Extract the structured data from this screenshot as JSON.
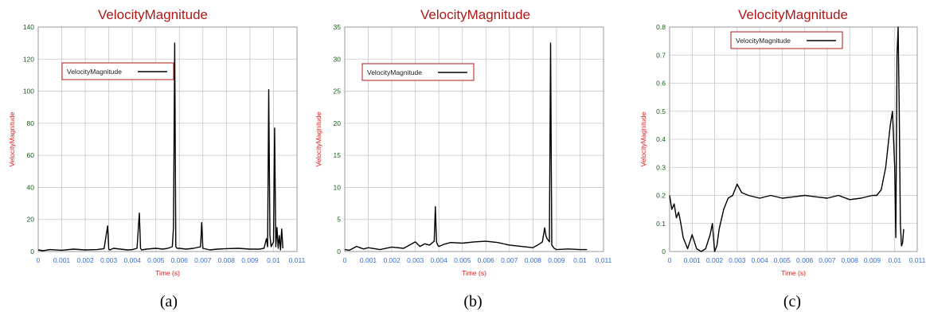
{
  "colors": {
    "title": "#b01818",
    "axis_label": "#e01818",
    "axis_tick_y": "#1a5a1a",
    "axis_tick_x": "#3a6ed0",
    "grid": "#c8c8c8",
    "line": "#000000",
    "legend_border": "#b01818"
  },
  "chart_data": [
    {
      "type": "line",
      "title": "VelocityMagnitude",
      "xlabel": "Time (s)",
      "ylabel": "VelocityMagnitude",
      "legend": "VelocityMagnitude",
      "legend_placement": "upper-left",
      "caption": "(a)",
      "xlim": [
        0,
        0.011
      ],
      "ylim": [
        0,
        140
      ],
      "xticks": [
        "0",
        "0.001",
        "0.002",
        "0.003",
        "0.004",
        "0.005",
        "0.006",
        "0.007",
        "0.008",
        "0.009",
        "0.01",
        "0.011"
      ],
      "yticks": [
        "0",
        "20",
        "40",
        "60",
        "80",
        "100",
        "120",
        "140"
      ],
      "grid": true,
      "series": [
        {
          "name": "VelocityMagnitude",
          "x": [
            0,
            0.0002,
            0.0005,
            0.001,
            0.0015,
            0.002,
            0.0025,
            0.0028,
            0.00295,
            0.003,
            0.00305,
            0.0032,
            0.0035,
            0.0038,
            0.004,
            0.0042,
            0.0043,
            0.00435,
            0.0044,
            0.0046,
            0.005,
            0.0053,
            0.0055,
            0.0057,
            0.00575,
            0.0058,
            0.00585,
            0.0059,
            0.006,
            0.0063,
            0.0066,
            0.0069,
            0.00695,
            0.007,
            0.0073,
            0.0076,
            0.008,
            0.0085,
            0.009,
            0.0094,
            0.0096,
            0.0097,
            0.00975,
            0.0098,
            0.00985,
            0.0099,
            0.01,
            0.01005,
            0.0101,
            0.01015,
            0.0102,
            0.01025,
            0.0103,
            0.01035,
            0.0104
          ],
          "y": [
            1,
            0.5,
            1.2,
            0.8,
            1.5,
            1,
            1.2,
            1.8,
            16,
            1.5,
            1,
            2,
            1.5,
            1,
            1.2,
            2,
            24,
            2,
            1,
            1.5,
            2,
            1.5,
            2,
            3,
            15,
            130,
            3,
            2,
            2,
            1.5,
            2,
            3,
            18,
            2,
            1,
            1.5,
            1.8,
            2,
            1.5,
            1.5,
            2,
            8,
            3,
            101,
            10,
            3,
            6,
            77,
            3,
            15,
            2,
            10,
            1,
            14,
            2
          ]
        }
      ]
    },
    {
      "type": "line",
      "title": "VelocityMagnitude",
      "xlabel": "Time (s)",
      "ylabel": "VelocityMagnitude",
      "legend": "VelocityMagnitude",
      "legend_placement": "upper-left",
      "caption": "(b)",
      "xlim": [
        0,
        0.011
      ],
      "ylim": [
        0,
        35
      ],
      "xticks": [
        "0",
        "0.001",
        "0.002",
        "0.003",
        "0.004",
        "0.005",
        "0.006",
        "0.007",
        "0.008",
        "0.009",
        "0.01",
        "0.011"
      ],
      "yticks": [
        "0",
        "5",
        "10",
        "15",
        "20",
        "25",
        "30",
        "35"
      ],
      "grid": true,
      "series": [
        {
          "name": "VelocityMagnitude",
          "x": [
            0,
            0.0002,
            0.0005,
            0.0008,
            0.001,
            0.0015,
            0.002,
            0.0025,
            0.003,
            0.0032,
            0.0034,
            0.0036,
            0.0038,
            0.00385,
            0.0039,
            0.00395,
            0.004,
            0.0042,
            0.0045,
            0.005,
            0.0055,
            0.006,
            0.0065,
            0.007,
            0.0075,
            0.008,
            0.0082,
            0.0084,
            0.0085,
            0.00855,
            0.0086,
            0.0087,
            0.00875,
            0.0088,
            0.0089,
            0.009,
            0.0095,
            0.01,
            0.0103
          ],
          "y": [
            0.3,
            0.2,
            0.8,
            0.4,
            0.6,
            0.3,
            0.7,
            0.5,
            1.5,
            0.8,
            1.2,
            1.0,
            1.6,
            7,
            1.5,
            1.0,
            0.8,
            1.1,
            1.4,
            1.3,
            1.5,
            1.6,
            1.4,
            1.0,
            0.8,
            0.6,
            1.0,
            1.5,
            3.7,
            2.5,
            2.0,
            1.5,
            32.5,
            1.0,
            0.5,
            0.3,
            0.4,
            0.3,
            0.3
          ]
        }
      ]
    },
    {
      "type": "line",
      "title": "VelocityMagnitude",
      "xlabel": "Time (s)",
      "ylabel": "VelocityMagnitude",
      "legend": "VelocityMagnitude",
      "legend_placement": "top-center",
      "caption": "(c)",
      "xlim": [
        0,
        0.011
      ],
      "ylim": [
        0,
        0.8
      ],
      "xticks": [
        "0",
        "0.001",
        "0.002",
        "0.003",
        "0.004",
        "0.005",
        "0.006",
        "0.007",
        "0.008",
        "0.009",
        "0.01",
        "0.011"
      ],
      "yticks": [
        "0",
        "0.1",
        "0.2",
        "0.3",
        "0.4",
        "0.5",
        "0.6",
        "0.7",
        "0.8"
      ],
      "grid": true,
      "series": [
        {
          "name": "VelocityMagnitude",
          "x": [
            0,
            0.0001,
            0.0002,
            0.0003,
            0.0004,
            0.0005,
            0.0006,
            0.0008,
            0.001,
            0.0012,
            0.0014,
            0.0016,
            0.0018,
            0.0019,
            0.002,
            0.0021,
            0.0022,
            0.0024,
            0.0026,
            0.0028,
            0.003,
            0.0032,
            0.0035,
            0.004,
            0.0045,
            0.005,
            0.0055,
            0.006,
            0.0065,
            0.007,
            0.0075,
            0.008,
            0.0085,
            0.009,
            0.0092,
            0.0094,
            0.0096,
            0.0098,
            0.0099,
            0.01,
            0.01005,
            0.0101,
            0.01015,
            0.0102,
            0.01025,
            0.0103,
            0.01035,
            0.0104
          ],
          "y": [
            0.2,
            0.15,
            0.17,
            0.12,
            0.14,
            0.1,
            0.05,
            0.01,
            0.06,
            0.01,
            0.0,
            0.01,
            0.06,
            0.1,
            0.0,
            0.02,
            0.08,
            0.15,
            0.19,
            0.2,
            0.24,
            0.21,
            0.2,
            0.19,
            0.2,
            0.19,
            0.195,
            0.2,
            0.195,
            0.19,
            0.2,
            0.185,
            0.19,
            0.2,
            0.2,
            0.22,
            0.3,
            0.45,
            0.5,
            0.3,
            0.05,
            0.7,
            0.8,
            0.5,
            0.1,
            0.02,
            0.03,
            0.08
          ]
        }
      ]
    }
  ]
}
